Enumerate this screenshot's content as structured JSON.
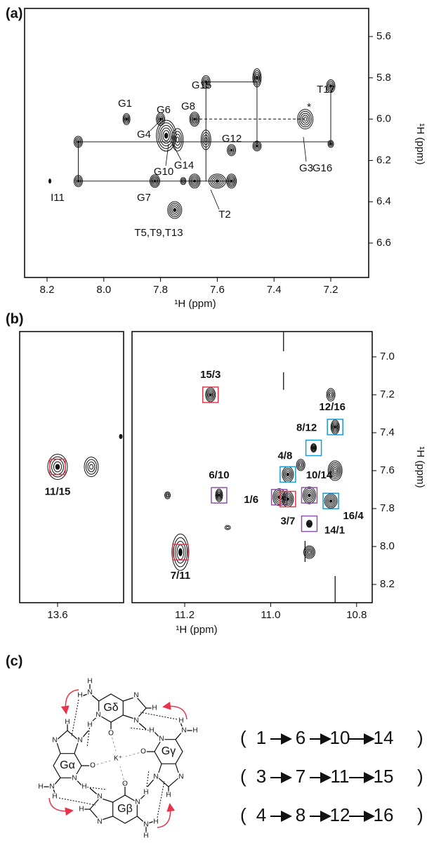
{
  "panels": [
    {
      "label": "(a)",
      "x_axis": {
        "label": "¹H (ppm)",
        "ticks": [
          "8.2",
          "8.0",
          "7.8",
          "7.6",
          "7.4",
          "7.2"
        ]
      },
      "y_axis": {
        "label": "¹H (ppm)",
        "ticks": [
          "5.6",
          "5.8",
          "6.0",
          "6.2",
          "6.4",
          "6.6"
        ]
      },
      "peak_labels": [
        "G1",
        "G6",
        "G8",
        "G15",
        "T17",
        "*",
        "G4",
        "G10",
        "G14",
        "G12",
        "G16",
        "G3",
        "I11",
        "G7",
        "T2",
        "T5,T9,T13"
      ]
    },
    {
      "label": "(b)",
      "x_axis": {
        "label": "¹H (ppm)",
        "ticks_left": [
          "13.6"
        ],
        "ticks_right": [
          "11.2",
          "11.0",
          "10.8"
        ]
      },
      "y_axis": {
        "label": "¹H (ppm)",
        "ticks": [
          "7.0",
          "7.2",
          "7.4",
          "7.6",
          "7.8",
          "8.0",
          "8.2"
        ]
      },
      "assignments": [
        {
          "text": "15/3",
          "color": "#e8334a"
        },
        {
          "text": "12/16",
          "color": "#1b9ad6"
        },
        {
          "text": "8/12",
          "color": "#1b9ad6"
        },
        {
          "text": "4/8",
          "color": "#1b9ad6"
        },
        {
          "text": "6/10",
          "color": "#8b55a5"
        },
        {
          "text": "10/14",
          "color": "#8b55a5"
        },
        {
          "text": "1/6",
          "color": "#8b55a5"
        },
        {
          "text": "3/7",
          "color": "#e8334a"
        },
        {
          "text": "16/4",
          "color": "#1b9ad6"
        },
        {
          "text": "14/1",
          "color": "#8b55a5"
        },
        {
          "text": "7/11",
          "color": "#e8334a"
        },
        {
          "text": "11/15",
          "color": "#e8334a"
        }
      ]
    },
    {
      "label": "(c)",
      "ion": "K⁺",
      "guanines": [
        {
          "label": "Gδ",
          "atoms": [
            "N",
            "N",
            "N",
            "N",
            "O",
            "H",
            "H",
            "H",
            "H"
          ]
        },
        {
          "label": "Gγ",
          "atoms": [
            "N",
            "N",
            "N",
            "N",
            "O",
            "H",
            "H",
            "H",
            "H"
          ]
        },
        {
          "label": "Gβ",
          "atoms": [
            "N",
            "N",
            "N",
            "N",
            "O",
            "H",
            "H",
            "H",
            "H"
          ]
        },
        {
          "label": "Gα",
          "atoms": [
            "N",
            "N",
            "N",
            "N",
            "O",
            "H",
            "H",
            "H",
            "H"
          ]
        }
      ],
      "brackets": [
        "(",
        ")"
      ],
      "pathways": [
        {
          "color": "#8b55a5",
          "items": [
            "1",
            "6",
            "10",
            "14"
          ]
        },
        {
          "color": "#e8334a",
          "items": [
            "3",
            "7",
            "11",
            "15"
          ]
        },
        {
          "color": "#1b9ad6",
          "items": [
            "4",
            "8",
            "12",
            "16"
          ]
        }
      ]
    }
  ]
}
